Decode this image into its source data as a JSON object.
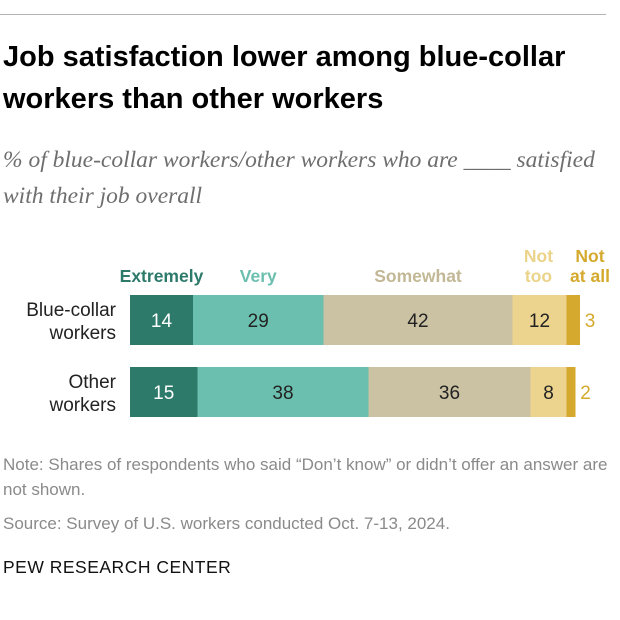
{
  "header": {
    "title": "Job satisfaction lower among blue-collar workers than other workers",
    "subtitle": "% of blue-collar workers/other workers who are ____ satisfied with their job overall"
  },
  "footer": {
    "note": "Note: Shares of respondents who said “Don’t know” or didn’t offer an answer are not shown.",
    "source": "Source: Survey of U.S. workers conducted Oct. 7-13, 2024.",
    "brand": "PEW RESEARCH CENTER"
  },
  "chart_data": {
    "type": "bar",
    "orientation": "horizontal",
    "stacked": true,
    "categories": [
      {
        "name": "Blue-collar workers",
        "lines": [
          "Blue-collar",
          "workers"
        ]
      },
      {
        "name": "Other workers",
        "lines": [
          "Other",
          "workers"
        ]
      }
    ],
    "series": [
      {
        "name": "Extremely",
        "legend_lines": [
          "Extremely"
        ],
        "color": "#2d7a6b",
        "label_color": "#ffffff",
        "values": [
          14,
          15
        ]
      },
      {
        "name": "Very",
        "legend_lines": [
          "Very"
        ],
        "color": "#6bbfae",
        "label_color": "#222222",
        "values": [
          29,
          38
        ]
      },
      {
        "name": "Somewhat",
        "legend_lines": [
          "Somewhat"
        ],
        "color": "#cbc2a3",
        "label_color": "#222222",
        "values": [
          42,
          36
        ]
      },
      {
        "name": "Not too",
        "legend_lines": [
          "Not",
          "too"
        ],
        "color": "#ecd48e",
        "label_color": "#222222",
        "values": [
          12,
          8
        ]
      },
      {
        "name": "Not at all",
        "legend_lines": [
          "Not",
          "at all"
        ],
        "color": "#d4a92d",
        "label_color": "#d4a92d",
        "values": [
          3,
          2
        ]
      }
    ],
    "legend_colors": [
      "#2d7a6b",
      "#6bbfae",
      "#c2b896",
      "#ebd38a",
      "#d4a92d"
    ],
    "xlim": [
      0,
      100
    ],
    "label_position": [
      "inside",
      "inside",
      "inside",
      "inside",
      "outside-right"
    ]
  }
}
